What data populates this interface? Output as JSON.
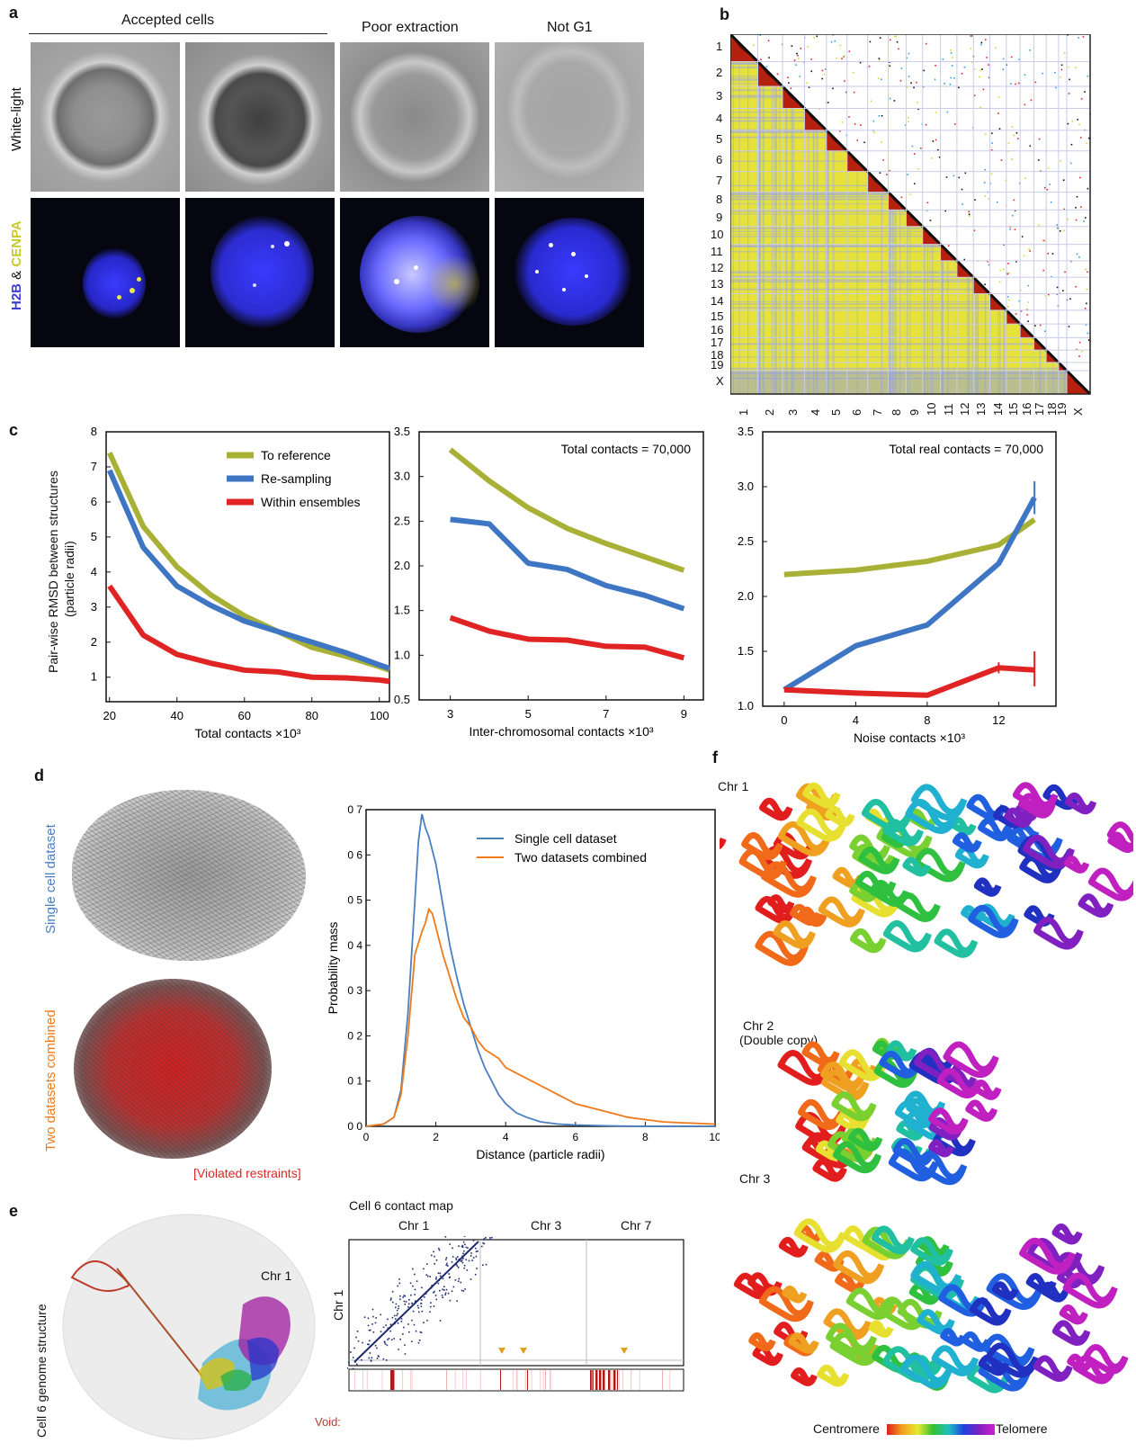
{
  "panel_a": {
    "letter": "a",
    "accepted_label": "Accepted cells",
    "poor_label": "Poor extraction",
    "notg1_label": "Not G1",
    "row_white": "White-light",
    "row_fl_h2b": "H2B",
    "row_fl_amp": " & ",
    "row_fl_cenpa": "CENPA",
    "colors": {
      "h2b": "#3c3cd8",
      "cenpa": "#d6d62a"
    }
  },
  "panel_b": {
    "letter": "b",
    "labels": [
      "1",
      "2",
      "3",
      "4",
      "5",
      "6",
      "7",
      "8",
      "9",
      "10",
      "11",
      "12",
      "13",
      "14",
      "15",
      "16",
      "17",
      "18",
      "19",
      "X"
    ]
  },
  "panel_c": {
    "letter": "c",
    "ylabel_line1": "Pair-wise RMSD between structures",
    "ylabel_line2": "(particle radii)",
    "legend": [
      "To reference",
      "Re-sampling",
      "Within ensembles"
    ],
    "colors": [
      "#a8b035",
      "#3f76c4",
      "#e02424"
    ],
    "chart_data": [
      {
        "type": "line",
        "xlabel": "Total contacts ×10³",
        "xlim": [
          19,
          103
        ],
        "ylim": [
          0.3,
          8
        ],
        "xticks": [
          20,
          40,
          60,
          80,
          100
        ],
        "yticks": [
          1,
          2,
          3,
          4,
          5,
          6,
          7,
          8
        ],
        "series": [
          {
            "name": "To reference",
            "x": [
              20,
              30,
              40,
              50,
              60,
              70,
              80,
              90,
              100,
              103
            ],
            "y": [
              7.4,
              5.3,
              4.15,
              3.35,
              2.75,
              2.3,
              1.85,
              1.6,
              1.3,
              1.2
            ]
          },
          {
            "name": "Re-sampling",
            "x": [
              20,
              30,
              40,
              50,
              60,
              70,
              80,
              90,
              100,
              103
            ],
            "y": [
              6.9,
              4.7,
              3.6,
              3.05,
              2.6,
              2.3,
              2.0,
              1.7,
              1.35,
              1.25
            ]
          },
          {
            "name": "Within ensembles",
            "x": [
              20,
              30,
              40,
              50,
              60,
              70,
              80,
              90,
              100,
              103
            ],
            "y": [
              3.6,
              2.2,
              1.65,
              1.4,
              1.2,
              1.15,
              1.0,
              0.98,
              0.92,
              0.88
            ]
          }
        ]
      },
      {
        "type": "line",
        "note": "Total contacts = 70,000",
        "xlabel": "Inter-chromosomal contacts ×10³",
        "xlim": [
          2.2,
          9.5
        ],
        "ylim": [
          0.5,
          3.5
        ],
        "xticks": [
          3,
          5,
          7,
          9
        ],
        "yticks": [
          0.5,
          1.0,
          1.5,
          2.0,
          2.5,
          3.0,
          3.5
        ],
        "ytick_labels": [
          "0.5",
          "1.0",
          "1.5",
          "2.0",
          "2.5",
          "3.0",
          "3.5"
        ],
        "series": [
          {
            "name": "To reference",
            "x": [
              3,
              4,
              5,
              6,
              7,
              8,
              9
            ],
            "y": [
              3.3,
              2.95,
              2.65,
              2.42,
              2.25,
              2.1,
              1.95
            ]
          },
          {
            "name": "Re-sampling",
            "x": [
              3,
              4,
              5,
              6,
              7,
              8,
              9
            ],
            "y": [
              2.52,
              2.47,
              2.03,
              1.96,
              1.78,
              1.67,
              1.52
            ]
          },
          {
            "name": "Within ensembles",
            "x": [
              3,
              4,
              5,
              6,
              7,
              8,
              9
            ],
            "y": [
              1.42,
              1.27,
              1.18,
              1.17,
              1.1,
              1.09,
              0.97
            ]
          }
        ]
      },
      {
        "type": "line",
        "note": "Total real contacts = 70,000",
        "xlabel": "Noise contacts ×10³",
        "xlim": [
          -1.2,
          15.2
        ],
        "ylim": [
          1.0,
          3.5
        ],
        "xticks": [
          0,
          4,
          8,
          12
        ],
        "yticks": [
          1.0,
          1.5,
          2.0,
          2.5,
          3.0,
          3.5
        ],
        "ytick_labels": [
          "1.0",
          "1.5",
          "2.0",
          "2.5",
          "3.0",
          "3.5"
        ],
        "series": [
          {
            "name": "To reference",
            "x": [
              0,
              4,
              8,
              12,
              14
            ],
            "y": [
              2.2,
              2.24,
              2.32,
              2.47,
              2.7
            ]
          },
          {
            "name": "Re-sampling",
            "x": [
              0,
              4,
              8,
              12,
              14
            ],
            "y": [
              1.15,
              1.55,
              1.74,
              2.3,
              2.9
            ]
          },
          {
            "name": "Within ensembles",
            "x": [
              0,
              4,
              8,
              12,
              14
            ],
            "y": [
              1.15,
              1.12,
              1.1,
              1.35,
              1.33
            ]
          }
        ]
      }
    ]
  },
  "panel_d": {
    "letter": "d",
    "single_label": "Single cell dataset",
    "combined_label": "Two datasets combined",
    "violated": "[Violated restraints]",
    "colors": {
      "single": "#4a7fc0",
      "combined": "#f07a1a",
      "violated": "#e02424"
    },
    "chart_data": {
      "type": "line",
      "xlabel": "Distance (particle radii)",
      "ylabel": "Probability mass",
      "xlim": [
        0,
        10
      ],
      "ylim": [
        0,
        0.7
      ],
      "xticks": [
        0,
        2,
        4,
        6,
        8,
        10
      ],
      "yticks": [
        0.0,
        0.1,
        0.2,
        0.3,
        0.4,
        0.5,
        0.6,
        0.7
      ],
      "ytick_labels": [
        "0 0",
        "0 1",
        "0 2",
        "0 3",
        "0 4",
        "0 5",
        "0 6",
        "0 7"
      ],
      "series": [
        {
          "name": "Single cell dataset",
          "x": [
            0,
            0.5,
            0.8,
            1.0,
            1.2,
            1.4,
            1.5,
            1.6,
            1.7,
            1.8,
            2.0,
            2.2,
            2.4,
            2.6,
            2.8,
            3.0,
            3.2,
            3.4,
            3.6,
            3.8,
            4.0,
            4.3,
            4.6,
            5.0,
            5.5,
            6.0,
            7.0,
            8.0,
            10.0
          ],
          "y": [
            0,
            0.005,
            0.02,
            0.08,
            0.25,
            0.5,
            0.63,
            0.69,
            0.66,
            0.64,
            0.58,
            0.49,
            0.4,
            0.33,
            0.27,
            0.22,
            0.17,
            0.13,
            0.1,
            0.07,
            0.05,
            0.03,
            0.02,
            0.01,
            0.005,
            0.003,
            0.001,
            0.0,
            0.0
          ]
        },
        {
          "name": "Two datasets combined",
          "x": [
            0,
            0.5,
            0.8,
            1.0,
            1.2,
            1.4,
            1.6,
            1.7,
            1.8,
            1.9,
            2.0,
            2.2,
            2.4,
            2.6,
            2.8,
            3.0,
            3.2,
            3.4,
            3.6,
            3.8,
            4.0,
            4.5,
            5.0,
            5.5,
            6.0,
            6.5,
            7.0,
            7.5,
            8.0,
            8.5,
            9.0,
            10.0
          ],
          "y": [
            0,
            0.005,
            0.02,
            0.07,
            0.2,
            0.38,
            0.43,
            0.45,
            0.48,
            0.47,
            0.44,
            0.38,
            0.33,
            0.28,
            0.24,
            0.22,
            0.19,
            0.17,
            0.16,
            0.15,
            0.13,
            0.11,
            0.09,
            0.07,
            0.05,
            0.04,
            0.03,
            0.02,
            0.015,
            0.01,
            0.008,
            0.005
          ]
        }
      ]
    }
  },
  "panel_e": {
    "letter": "e",
    "structure_label": "Cell 6 genome structure",
    "chr1_label": "Chr 1",
    "map_title": "Cell 6 contact map",
    "map_cols": [
      "Chr 1",
      "Chr 3",
      "Chr 7"
    ],
    "map_row": "Chr 1",
    "void_label": "Void:"
  },
  "panel_f": {
    "letter": "f",
    "chr1": "Chr 1",
    "chr2_line1": "Chr 2",
    "chr2_line2": "(Double copy)",
    "chr3": "Chr 3",
    "centromere": "Centromere",
    "telomere": "Telomere"
  }
}
